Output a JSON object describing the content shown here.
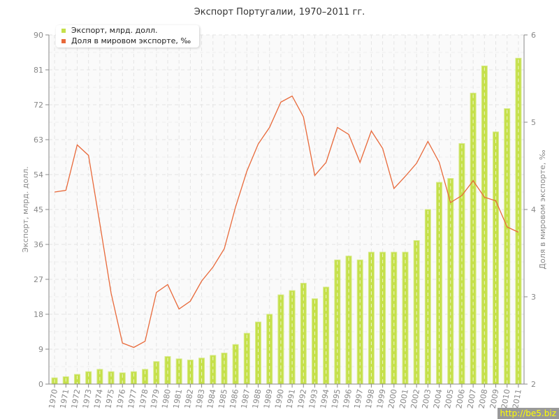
{
  "chart_data": {
    "type": "bar+line",
    "title": "Экспорт Португалии, 1970–2011 гг.",
    "ylabel": "Экспорт, млрд. долл.",
    "y2label": "Доля в мировом экспорте, ‰",
    "ylim": [
      0,
      90
    ],
    "yticks": [
      0,
      9,
      18,
      27,
      36,
      45,
      54,
      63,
      72,
      81,
      90
    ],
    "y2lim": [
      2,
      6
    ],
    "y2ticks": [
      2,
      3,
      4,
      5,
      6
    ],
    "grid": true,
    "legend": "top-left",
    "categories": [
      "1970",
      "1971",
      "1972",
      "1973",
      "1974",
      "1975",
      "1976",
      "1977",
      "1978",
      "1979",
      "1980",
      "1981",
      "1982",
      "1983",
      "1984",
      "1985",
      "1986",
      "1987",
      "1988",
      "1989",
      "1990",
      "1991",
      "1992",
      "1993",
      "1994",
      "1995",
      "1996",
      "1997",
      "1998",
      "1999",
      "2000",
      "2001",
      "2002",
      "2003",
      "2004",
      "2005",
      "2006",
      "2007",
      "2008",
      "2009",
      "2010",
      "2011"
    ],
    "series": [
      {
        "name": "Экспорт, млрд. долл.",
        "type": "bar",
        "axis": "left",
        "color": "#c5e04a",
        "values": [
          1.6,
          1.9,
          2.5,
          3.2,
          3.8,
          3.2,
          2.9,
          3.2,
          3.8,
          5.8,
          7.1,
          6.5,
          6.2,
          6.7,
          7.4,
          8.0,
          10.2,
          13.1,
          16,
          18,
          23,
          24.1,
          26,
          22,
          25,
          32,
          33,
          32,
          34,
          34,
          34,
          34,
          37,
          45,
          52,
          53,
          62,
          75,
          82,
          65,
          71,
          84
        ]
      },
      {
        "name": "Доля в мировом экспорте, ‰",
        "type": "line",
        "axis": "right",
        "color": "#e8693a",
        "values": [
          4.2,
          4.22,
          4.74,
          4.62,
          3.84,
          3.04,
          2.47,
          2.42,
          2.49,
          3.05,
          3.14,
          2.86,
          2.95,
          3.18,
          3.34,
          3.55,
          4.03,
          4.44,
          4.75,
          4.94,
          5.23,
          5.3,
          5.06,
          4.39,
          4.54,
          4.94,
          4.86,
          4.54,
          4.9,
          4.7,
          4.24,
          4.38,
          4.53,
          4.78,
          4.54,
          4.08,
          4.16,
          4.33,
          4.14,
          4.1,
          3.8,
          3.74
        ]
      }
    ]
  },
  "watermark": "http://be5.biz"
}
